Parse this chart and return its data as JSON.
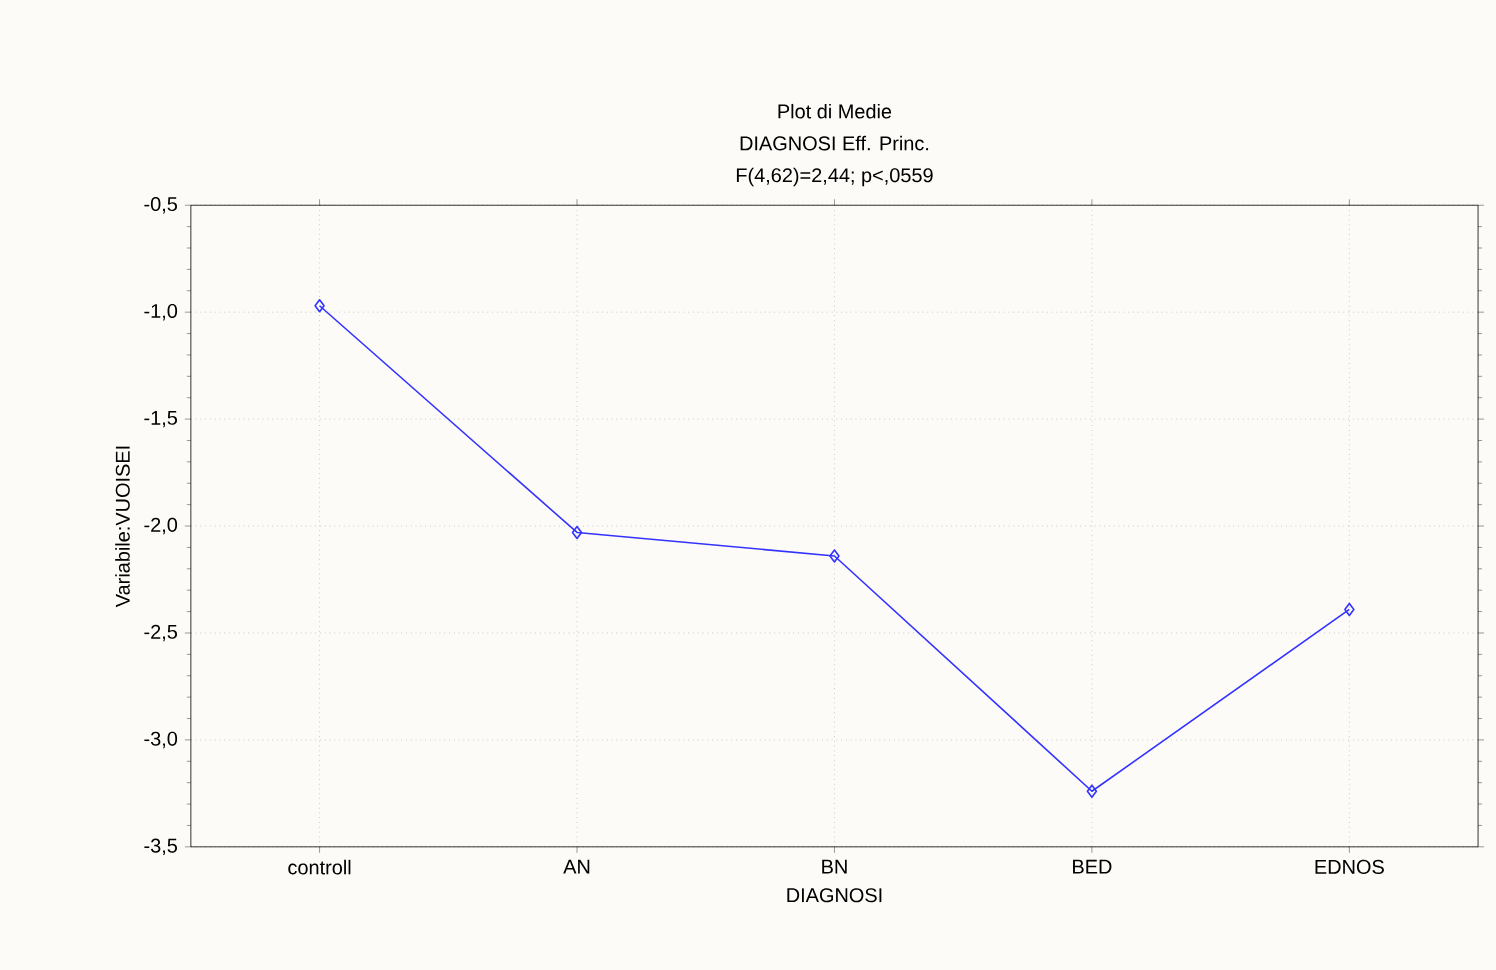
{
  "chart_data": {
    "type": "line",
    "title": "Plot di Medie",
    "subtitle": "DIAGNOSI Eff. Princ.",
    "annotations": [
      "F(4,62)=2,44; p<,0559"
    ],
    "xlabel": "DIAGNOSI",
    "ylabel": "Variabile:VUOISEI",
    "categories": [
      "controll",
      "AN",
      "BN",
      "BED",
      "EDNOS"
    ],
    "series": [
      {
        "color": "#3333ff",
        "values": [
          -0.97,
          -2.03,
          -2.14,
          -3.24,
          -2.39
        ]
      }
    ],
    "ylim": [
      -3.5,
      -0.5
    ],
    "yticks": [
      {
        "value": -3.5,
        "label": "-3,5"
      },
      {
        "value": -3.0,
        "label": "-3,0"
      },
      {
        "value": -2.5,
        "label": "-2,5"
      },
      {
        "value": -2.0,
        "label": "-2,0"
      },
      {
        "value": -1.5,
        "label": "-1,5"
      },
      {
        "value": -1.0,
        "label": "-1,0"
      },
      {
        "value": -0.5,
        "label": "-0,5"
      }
    ],
    "grid": true,
    "marker": "diamond",
    "line_style": "solid"
  }
}
